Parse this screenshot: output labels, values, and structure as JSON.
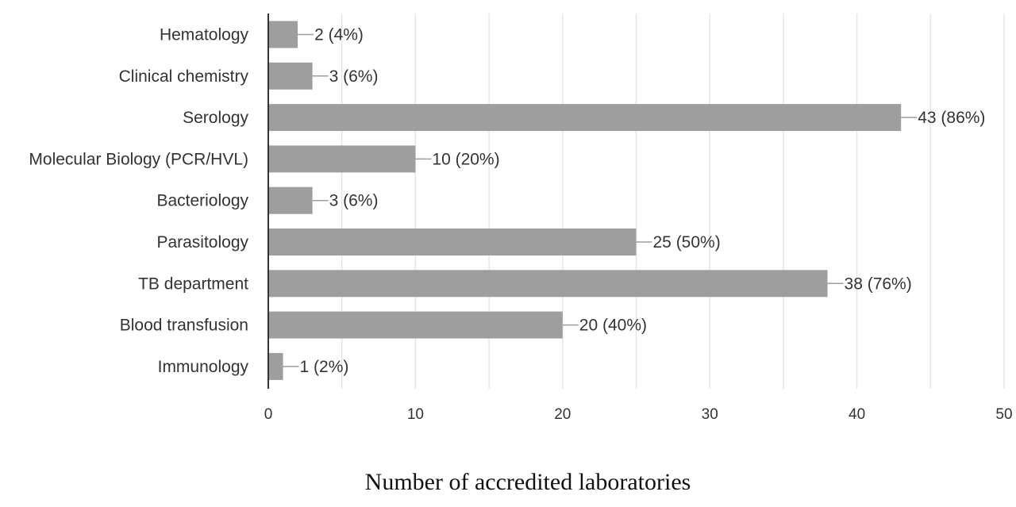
{
  "chart_data": {
    "type": "bar",
    "orientation": "horizontal",
    "categories": [
      "Hematology",
      "Clinical chemistry",
      "Serology",
      "Molecular Biology (PCR/HVL)",
      "Bacteriology",
      "Parasitology",
      "TB department",
      "Blood transfusion",
      "Immunology"
    ],
    "values": [
      2,
      3,
      43,
      10,
      3,
      25,
      38,
      20,
      1
    ],
    "data_labels": [
      "2 (4%)",
      "3 (6%)",
      "43 (86%)",
      "10 (20%)",
      "3 (6%)",
      "25 (50%)",
      "38 (76%)",
      "20 (40%)",
      "1 (2%)"
    ],
    "x_ticks": [
      "0",
      "10",
      "20",
      "30",
      "40",
      "50"
    ],
    "xlabel": "Number of accredited laboratories",
    "xlim": [
      0,
      50
    ],
    "grid": true,
    "legend": "none",
    "colors": {
      "bar": "#9e9e9e",
      "grid": "#e6e6e6",
      "axis": "#333333",
      "leader": "#9e9e9e"
    }
  }
}
